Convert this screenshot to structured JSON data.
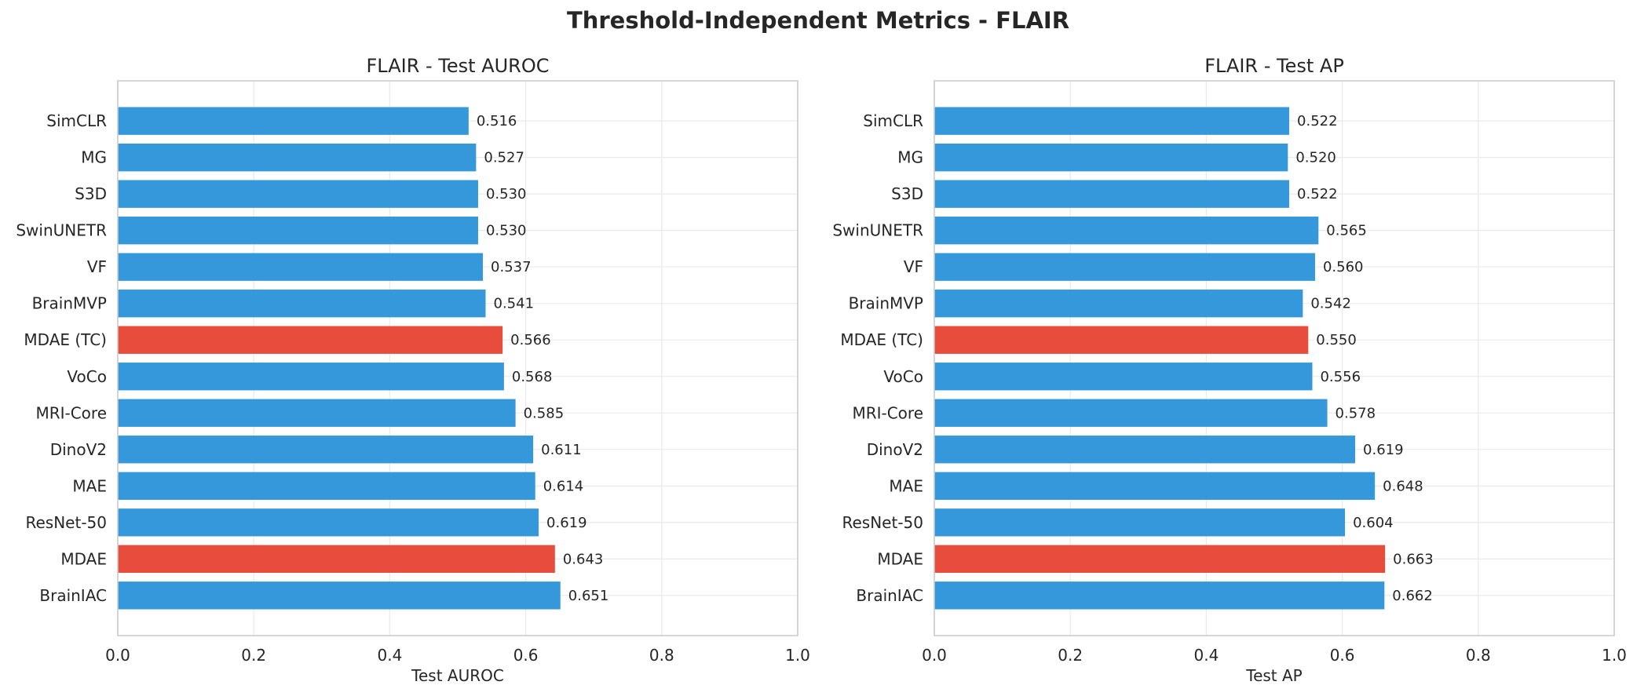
{
  "figure": {
    "title": "Threshold-Independent Metrics - FLAIR"
  },
  "colors": {
    "bar_default": "#3498db",
    "bar_highlight": "#e74c3c",
    "grid": "#ebebeb",
    "frame": "#cccccc",
    "text": "#262626"
  },
  "chart_data": [
    {
      "type": "bar",
      "orientation": "horizontal",
      "title": "FLAIR - Test AUROC",
      "xlabel": "Test AUROC",
      "ylabel": "",
      "xlim": [
        0,
        1.0
      ],
      "xticks": [
        "0.0",
        "0.2",
        "0.4",
        "0.6",
        "0.8",
        "1.0"
      ],
      "grid": true,
      "highlighted": [
        "MDAE (TC)",
        "MDAE"
      ],
      "categories": [
        "SimCLR",
        "MG",
        "S3D",
        "SwinUNETR",
        "VF",
        "BrainMVP",
        "MDAE (TC)",
        "VoCo",
        "MRI-Core",
        "DinoV2",
        "MAE",
        "ResNet-50",
        "MDAE",
        "BrainIAC"
      ],
      "values": [
        0.516,
        0.527,
        0.53,
        0.53,
        0.537,
        0.541,
        0.566,
        0.568,
        0.585,
        0.611,
        0.614,
        0.619,
        0.643,
        0.651
      ],
      "value_labels": [
        "0.516",
        "0.527",
        "0.530",
        "0.530",
        "0.537",
        "0.541",
        "0.566",
        "0.568",
        "0.585",
        "0.611",
        "0.614",
        "0.619",
        "0.643",
        "0.651"
      ]
    },
    {
      "type": "bar",
      "orientation": "horizontal",
      "title": "FLAIR - Test AP",
      "xlabel": "Test AP",
      "ylabel": "",
      "xlim": [
        0,
        1.0
      ],
      "xticks": [
        "0.0",
        "0.2",
        "0.4",
        "0.6",
        "0.8",
        "1.0"
      ],
      "grid": true,
      "highlighted": [
        "MDAE (TC)",
        "MDAE"
      ],
      "categories": [
        "SimCLR",
        "MG",
        "S3D",
        "SwinUNETR",
        "VF",
        "BrainMVP",
        "MDAE (TC)",
        "VoCo",
        "MRI-Core",
        "DinoV2",
        "MAE",
        "ResNet-50",
        "MDAE",
        "BrainIAC"
      ],
      "values": [
        0.522,
        0.52,
        0.522,
        0.565,
        0.56,
        0.542,
        0.55,
        0.556,
        0.578,
        0.619,
        0.648,
        0.604,
        0.663,
        0.662
      ],
      "value_labels": [
        "0.522",
        "0.520",
        "0.522",
        "0.565",
        "0.560",
        "0.542",
        "0.550",
        "0.556",
        "0.578",
        "0.619",
        "0.648",
        "0.604",
        "0.663",
        "0.662"
      ]
    }
  ]
}
